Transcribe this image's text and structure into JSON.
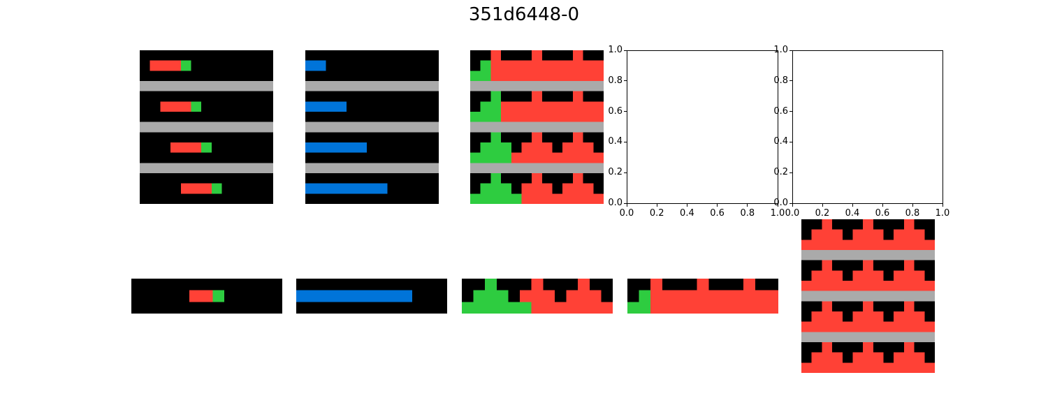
{
  "title": "351d6448-0",
  "palette": {
    "0": "#000000",
    "1": "#0074d9",
    "2": "#ff4136",
    "3": "#2ecc40",
    "5": "#aaaaaa"
  },
  "panels": [
    {
      "id": "train-0-input",
      "grid": [
        "0000000000000",
        "0222300000000",
        "0000000000000",
        "5555555555555",
        "0000000000000",
        "0022230000000",
        "0000000000000",
        "5555555555555",
        "0000000000000",
        "0002223000000",
        "0000000000000",
        "5555555555555",
        "0000000000000",
        "0000222300000",
        "0000000000000"
      ]
    },
    {
      "id": "train-1-input",
      "grid": [
        "0000000000000",
        "1100000000000",
        "0000000000000",
        "5555555555555",
        "0000000000000",
        "1111000000000",
        "0000000000000",
        "5555555555555",
        "0000000000000",
        "1111110000000",
        "0000000000000",
        "5555555555555",
        "0000000000000",
        "1111111100000",
        "0000000000000"
      ]
    },
    {
      "id": "train-2-input",
      "grid": [
        "0020002000200",
        "0322222222222",
        "3322222222222",
        "5555555555555",
        "0030002000200",
        "0332222222222",
        "3332222222222",
        "5555555555555",
        "0030002000200",
        "0333022202220",
        "3333222222222",
        "5555555555555",
        "0030002000200",
        "0333022202220",
        "3333322222222"
      ]
    },
    {
      "id": "train-0-output",
      "grid": [
        "0000000000000",
        "0000022300000",
        "0000000000000"
      ]
    },
    {
      "id": "train-1-output",
      "grid": [
        "0000000000000",
        "1111111111000",
        "0000000000000"
      ]
    },
    {
      "id": "train-2-output",
      "grid": [
        "0030002000200",
        "0333022202220",
        "3333332222222"
      ]
    },
    {
      "id": "test-output",
      "grid": [
        "0020002000200",
        "0322222222222",
        "3322222222222"
      ]
    },
    {
      "id": "test-input",
      "grid": [
        "0020002000200",
        "0222022202220",
        "2222222222222",
        "5555555555555",
        "0020002000200",
        "0222022202220",
        "2222222222222",
        "5555555555555",
        "0020002000200",
        "0222022202220",
        "2222222222222",
        "5555555555555",
        "0020002000200",
        "0222022202220",
        "2222222222222"
      ]
    }
  ],
  "empty_axes": [
    {
      "id": "empty-axes-1",
      "xticks": [
        "0.0",
        "0.2",
        "0.4",
        "0.6",
        "0.8",
        "1.0"
      ],
      "yticks": [
        "0.0",
        "0.2",
        "0.4",
        "0.6",
        "0.8",
        "1.0"
      ]
    },
    {
      "id": "empty-axes-2",
      "xticks": [
        "0.0",
        "0.2",
        "0.4",
        "0.6",
        "0.8",
        "1.0"
      ],
      "yticks": [
        "0.0",
        "0.2",
        "0.4",
        "0.6",
        "0.8",
        "1.0"
      ]
    }
  ]
}
